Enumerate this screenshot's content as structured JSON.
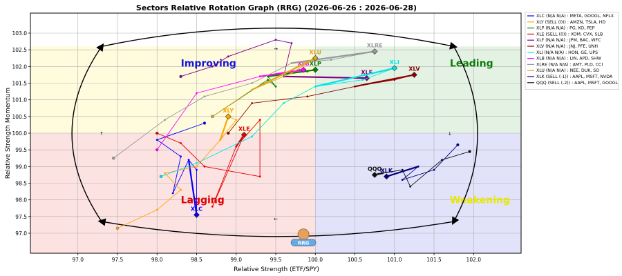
{
  "chart_data": {
    "type": "line",
    "title": "Sectors Relative Rotation Graph (RRG) (2026-06-26 : 2026-06-28)",
    "xlabel": "Relative Strength (ETF/SPY)",
    "ylabel": "Relative Strength Momentum",
    "xlim": [
      96.4,
      102.6
    ],
    "ylim": [
      96.4,
      103.6
    ],
    "x_ticks": [
      "97.0",
      "97.5",
      "98.0",
      "98.5",
      "99.0",
      "99.5",
      "100.0",
      "100.5",
      "101.0",
      "101.5",
      "102.0"
    ],
    "y_ticks": [
      "97.0",
      "97.5",
      "98.0",
      "98.5",
      "99.0",
      "99.5",
      "100.0",
      "100.5",
      "101.0",
      "101.5",
      "102.0",
      "102.5",
      "103.0"
    ],
    "grid": true,
    "legend_position": "right",
    "quadrants": {
      "improving": {
        "label": "Improving",
        "color": "#fffbdd",
        "text_color": "#1515d6"
      },
      "leading": {
        "label": "Leading",
        "color": "#e4f2e4",
        "text_color": "#0a7a0a"
      },
      "lagging": {
        "label": "Lagging",
        "color": "#fde2e2",
        "text_color": "#e00000"
      },
      "weakening": {
        "label": "Weakening",
        "color": "#e2e2fb",
        "text_color": "#e8e800"
      }
    },
    "series": [
      {
        "name": "XLC",
        "legend": "XLC (N/A N/A) : META, GOOGL, NFLX",
        "color": "#0000ff",
        "points": [
          [
            98.6,
            100.3
          ],
          [
            98.0,
            99.8
          ],
          [
            98.3,
            99.3
          ],
          [
            98.2,
            98.2
          ],
          [
            98.4,
            99.2
          ],
          [
            98.5,
            98.9
          ],
          [
            98.5,
            97.55
          ]
        ]
      },
      {
        "name": "XLY",
        "legend": "XLY (SELL (0)) : AMZN, TSLA, HD",
        "color": "#ffa500",
        "points": [
          [
            97.5,
            97.15
          ],
          [
            98.0,
            97.7
          ],
          [
            98.3,
            98.3
          ],
          [
            98.1,
            98.8
          ],
          [
            98.5,
            99.0
          ],
          [
            98.8,
            99.8
          ],
          [
            99.0,
            100.4
          ],
          [
            98.9,
            100.5
          ]
        ]
      },
      {
        "name": "XLP",
        "legend": "XLP (N/A N/A) : PG, KO, PEP",
        "color": "#008000",
        "points": [
          [
            98.7,
            100.5
          ],
          [
            99.4,
            101.6
          ],
          [
            99.5,
            101.4
          ],
          [
            99.4,
            101.7
          ],
          [
            99.9,
            101.85
          ],
          [
            100.0,
            101.9
          ]
        ]
      },
      {
        "name": "XLE",
        "legend": "XLE (SELL (0)) : XOM, CVX, SLB",
        "color": "#e00000",
        "points": [
          [
            98.0,
            100.0
          ],
          [
            98.3,
            99.7
          ],
          [
            98.6,
            99.0
          ],
          [
            99.3,
            98.7
          ],
          [
            99.3,
            100.4
          ],
          [
            99.0,
            99.6
          ],
          [
            98.7,
            97.8
          ],
          [
            99.1,
            99.95
          ]
        ]
      },
      {
        "name": "XLF",
        "legend": "XLF (N/A N/A) : JPM, BAC, WFC",
        "color": "#800080",
        "points": [
          [
            98.3,
            101.7
          ],
          [
            98.7,
            102.0
          ],
          [
            98.9,
            102.3
          ],
          [
            99.5,
            102.8
          ],
          [
            99.7,
            102.7
          ],
          [
            99.6,
            101.7
          ],
          [
            100.6,
            101.65
          ],
          [
            100.65,
            101.65
          ]
        ]
      },
      {
        "name": "XLV",
        "legend": "XLV (N/A N/A) : JNJ, PFE, UNH",
        "color": "#8b0000",
        "points": [
          [
            98.9,
            100.0
          ],
          [
            99.2,
            100.9
          ],
          [
            99.9,
            101.1
          ],
          [
            100.5,
            101.4
          ],
          [
            101.0,
            101.6
          ],
          [
            101.25,
            101.75
          ]
        ]
      },
      {
        "name": "XLI",
        "legend": "XLI (N/A N/A) : HON, GE, UPS",
        "color": "#00e5e5",
        "points": [
          [
            98.05,
            98.7
          ],
          [
            98.5,
            99.1
          ],
          [
            99.2,
            99.9
          ],
          [
            99.6,
            100.9
          ],
          [
            100.0,
            101.4
          ],
          [
            100.6,
            101.6
          ],
          [
            101.0,
            101.95
          ]
        ]
      },
      {
        "name": "XLB",
        "legend": "XLB (N/A N/A) : LIN, APD, SHW",
        "color": "#ff00ff",
        "points": [
          [
            98.0,
            99.5
          ],
          [
            98.5,
            101.2
          ],
          [
            99.3,
            101.7
          ],
          [
            99.8,
            101.9
          ],
          [
            99.85,
            101.9
          ]
        ]
      },
      {
        "name": "XLRE",
        "legend": "XLRE (N/A N/A) : AMT, PLD, CCI",
        "color": "#999999",
        "points": [
          [
            97.45,
            99.25
          ],
          [
            98.1,
            100.4
          ],
          [
            98.6,
            101.1
          ],
          [
            99.2,
            101.5
          ],
          [
            99.7,
            102.1
          ],
          [
            100.2,
            102.2
          ],
          [
            100.75,
            102.45
          ]
        ]
      },
      {
        "name": "XLU",
        "legend": "XLU (N/A N/A) : NEE, DUK, SO",
        "color": "#daa520",
        "points": [
          [
            98.7,
            100.5
          ],
          [
            99.2,
            101.3
          ],
          [
            99.7,
            101.8
          ],
          [
            100.0,
            102.25
          ]
        ]
      },
      {
        "name": "XLK",
        "legend": "XLK (SELL (-1)) : AAPL, MSFT, NVDA",
        "color": "#000080",
        "points": [
          [
            101.8,
            99.65
          ],
          [
            101.5,
            98.9
          ],
          [
            101.1,
            98.6
          ],
          [
            101.3,
            99.0
          ],
          [
            100.9,
            98.7
          ],
          [
            100.9,
            98.7
          ]
        ]
      },
      {
        "name": "QQQ",
        "legend": "QQQ (SELL (-2)) : AAPL, MSFT, GOOGL",
        "color": "#111111",
        "points": [
          [
            101.95,
            99.45
          ],
          [
            101.6,
            99.2
          ],
          [
            101.2,
            98.4
          ],
          [
            101.1,
            98.9
          ],
          [
            100.85,
            98.8
          ],
          [
            100.8,
            98.78
          ],
          [
            100.75,
            98.75
          ]
        ]
      }
    ],
    "annotation_logo": "RRG"
  }
}
